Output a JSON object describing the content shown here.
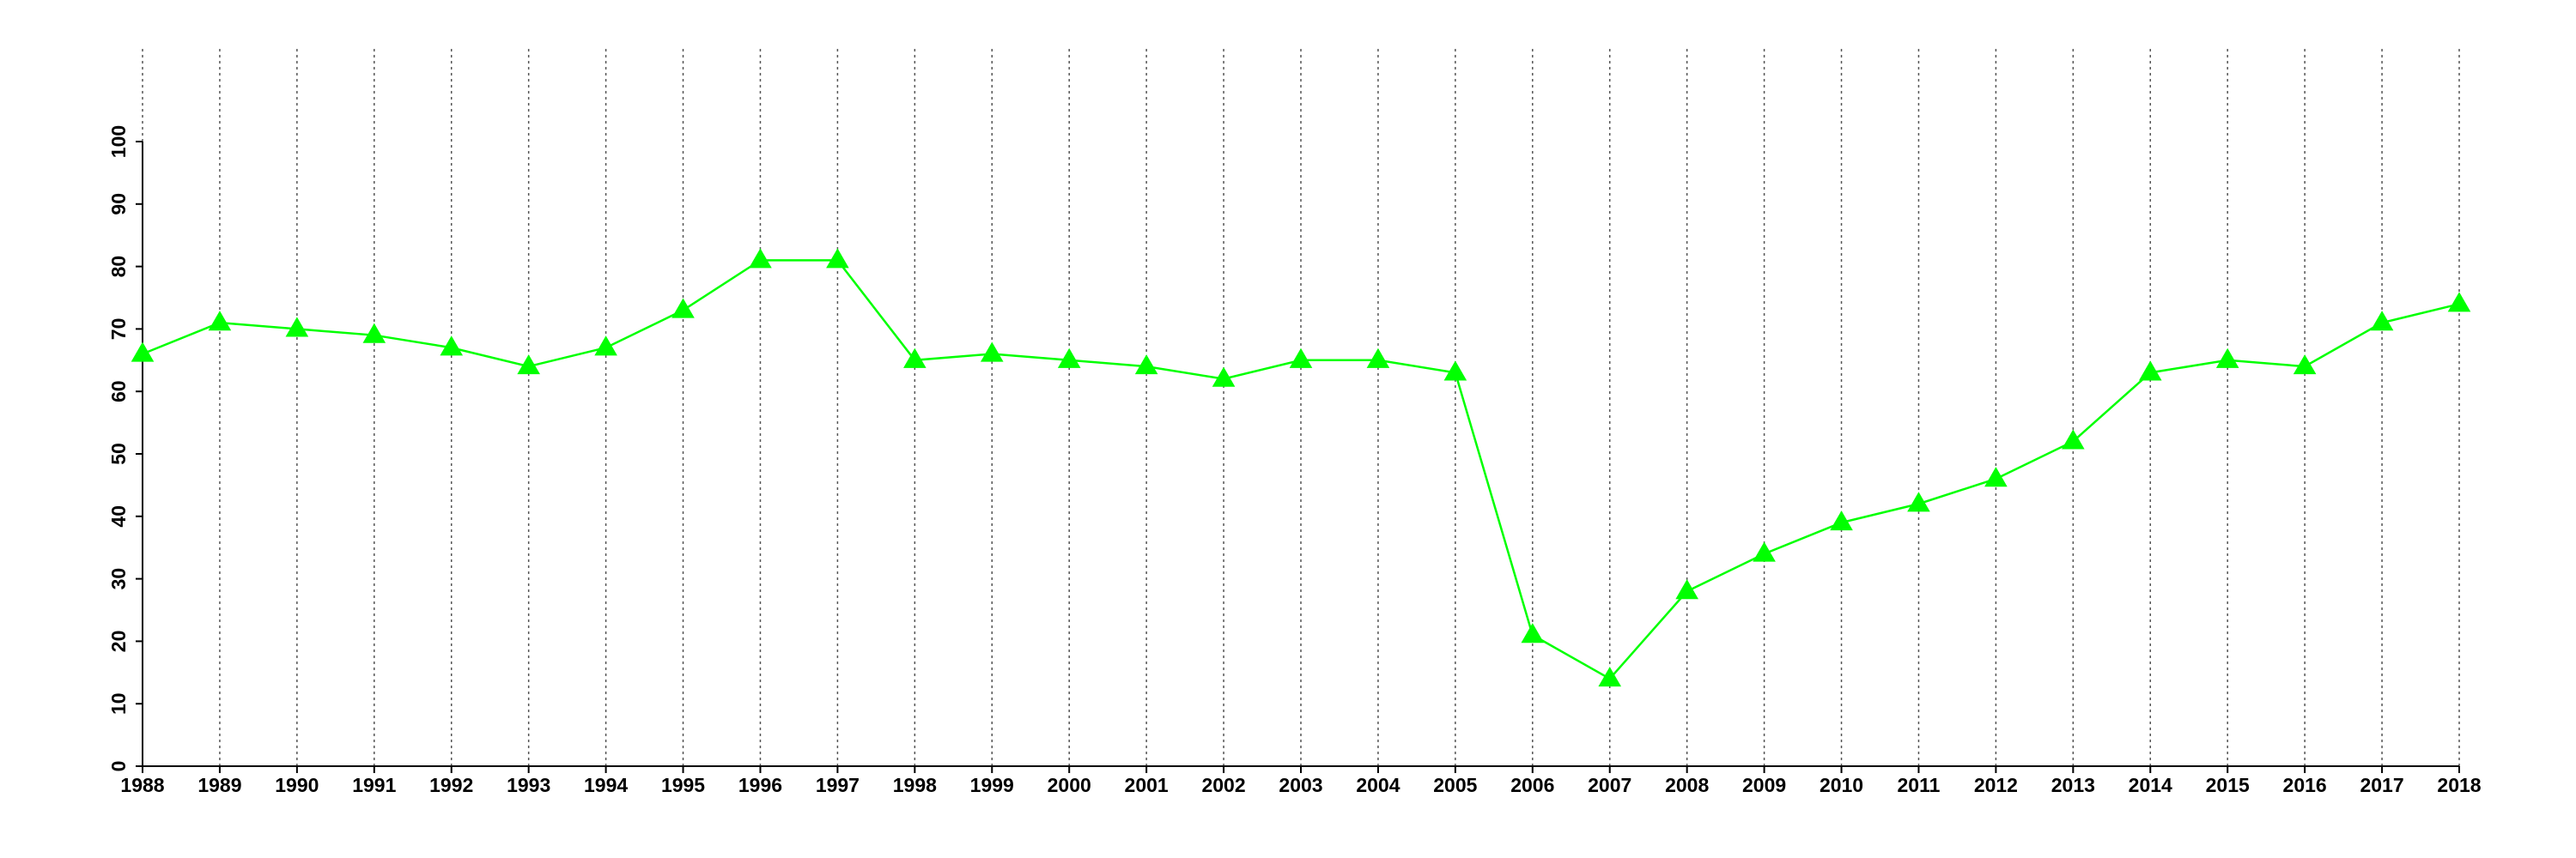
{
  "chart_data": {
    "type": "line",
    "x": [
      1988,
      1989,
      1990,
      1991,
      1992,
      1993,
      1994,
      1995,
      1996,
      1997,
      1998,
      1999,
      2000,
      2001,
      2002,
      2003,
      2004,
      2005,
      2006,
      2007,
      2008,
      2009,
      2010,
      2011,
      2012,
      2013,
      2014,
      2015,
      2016,
      2017,
      2018
    ],
    "series": [
      {
        "color": "#00ff00",
        "marker": "triangle",
        "values": [
          66,
          71,
          70,
          69,
          67,
          64,
          67,
          73,
          81,
          81,
          65,
          66,
          65,
          64,
          62,
          65,
          65,
          63,
          21,
          14,
          28,
          34,
          39,
          42,
          46,
          52,
          63,
          65,
          64,
          71,
          74
        ]
      }
    ],
    "xlim": [
      1988,
      2018
    ],
    "xticks": [
      1988,
      1989,
      1990,
      1991,
      1992,
      1993,
      1994,
      1995,
      1996,
      1997,
      1998,
      1999,
      2000,
      2001,
      2002,
      2003,
      2004,
      2005,
      2006,
      2007,
      2008,
      2009,
      2010,
      2011,
      2012,
      2013,
      2014,
      2015,
      2016,
      2017,
      2018
    ],
    "ylim": [
      0,
      100
    ],
    "yticks": [
      0,
      10,
      20,
      30,
      40,
      50,
      60,
      70,
      80,
      90,
      100
    ],
    "grid": "x"
  }
}
